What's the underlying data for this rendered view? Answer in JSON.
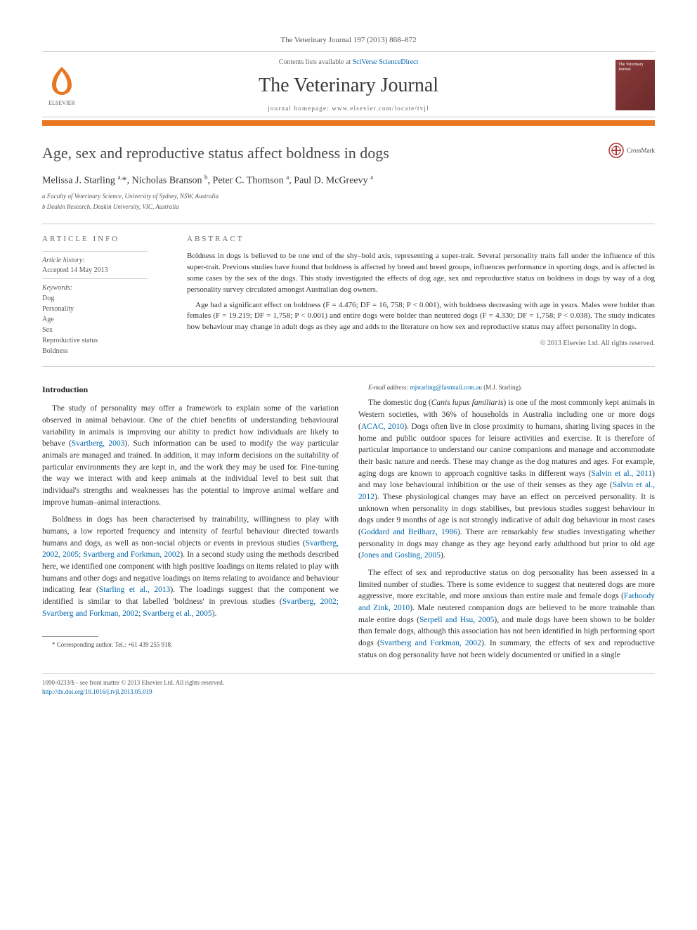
{
  "citation_line": "The Veterinary Journal 197 (2013) 868–872",
  "header": {
    "contents_prefix": "Contents lists available at ",
    "contents_link": "SciVerse ScienceDirect",
    "journal_name": "The Veterinary Journal",
    "homepage_prefix": "journal homepage: ",
    "homepage_url": "www.elsevier.com/locate/tvjl",
    "publisher_name": "ELSEVIER",
    "cover_text": "The Veterinary Journal"
  },
  "colors": {
    "orange": "#e87722",
    "link": "#0066aa",
    "rule": "#cccccc"
  },
  "article": {
    "title": "Age, sex and reproductive status affect boldness in dogs",
    "crossmark_label": "CrossMark",
    "authors_html": "Melissa J. Starling <sup>a,</sup>*, Nicholas Branson <sup>b</sup>, Peter C. Thomson <sup>a</sup>, Paul D. McGreevy <sup>a</sup>",
    "affiliations": [
      "a Faculty of Veterinary Science, University of Sydney, NSW, Australia",
      "b Deakin Research, Deakin University, VIC, Australia"
    ]
  },
  "info": {
    "heading": "ARTICLE INFO",
    "history_label": "Article history:",
    "history_value": "Accepted 14 May 2013",
    "keywords_label": "Keywords:",
    "keywords": [
      "Dog",
      "Personality",
      "Age",
      "Sex",
      "Reproductive status",
      "Boldness"
    ]
  },
  "abstract": {
    "heading": "ABSTRACT",
    "p1": "Boldness in dogs is believed to be one end of the shy–bold axis, representing a super-trait. Several personality traits fall under the influence of this super-trait. Previous studies have found that boldness is affected by breed and breed groups, influences performance in sporting dogs, and is affected in some cases by the sex of the dogs. This study investigated the effects of dog age, sex and reproductive status on boldness in dogs by way of a dog personality survey circulated amongst Australian dog owners.",
    "p2": "Age had a significant effect on boldness (F = 4.476; DF = 16, 758; P < 0.001), with boldness decreasing with age in years. Males were bolder than females (F = 19.219; DF = 1,758; P < 0.001) and entire dogs were bolder than neutered dogs (F = 4.330; DF = 1,758; P < 0.038). The study indicates how behaviour may change in adult dogs as they age and adds to the literature on how sex and reproductive status may affect personality in dogs.",
    "copyright": "© 2013 Elsevier Ltd. All rights reserved."
  },
  "body": {
    "intro_heading": "Introduction",
    "p1a": "The study of personality may offer a framework to explain some of the variation observed in animal behaviour. One of the chief benefits of understanding behavioural variability in animals is improving our ability to predict how individuals are likely to behave (",
    "c1": "Svartberg, 2003",
    "p1b": "). Such information can be used to modify the way particular animals are managed and trained. In addition, it may inform decisions on the suitability of particular environments they are kept in, and the work they may be used for. Fine-tuning the way we interact with and keep animals at the individual level to best suit that individual's strengths and weaknesses has the potential to improve animal welfare and improve human–animal interactions.",
    "p2a": "Boldness in dogs has been characterised by trainability, willingness to play with humans, a low reported frequency and intensity of fearful behaviour directed towards humans and dogs, as well as non-social objects or events in previous studies (",
    "c2": "Svartberg, 2002, 2005; Svartberg and Forkman, 2002",
    "p2b": "). In a second study using the methods described here, we identified one component with high positive loadings on items related to play with humans and other dogs and negative loadings on items relating to avoidance and behaviour indicating fear (",
    "c3": "Starling et al., 2013",
    "p2c": "). The loadings suggest that the component we identified is similar to that labelled 'boldness' in previous studies (",
    "c4": "Svartberg, 2002; Svartberg and Forkman, 2002; Svartberg et al., 2005",
    "p2d": ").",
    "p3a": "The domestic dog (",
    "species": "Canis lupus familiaris",
    "p3b": ") is one of the most commonly kept animals in Western societies, with 36% of households in Australia including one or more dogs (",
    "c5": "ACAC, 2010",
    "p3c": "). Dogs often live in close proximity to humans, sharing living spaces in the home and public outdoor spaces for leisure activities and exercise. It is therefore of particular importance to understand our canine companions and manage and accommodate their basic nature and needs. These may change as the dog matures and ages. For example, aging dogs are known to approach cognitive tasks in different ways (",
    "c6": "Salvin et al., 2011",
    "p3d": ") and may lose behavioural inhibition or the use of their senses as they age (",
    "c7": "Salvin et al., 2012",
    "p3e": "). These physiological changes may have an effect on perceived personality. It is unknown when personality in dogs stabilises, but previous studies suggest behaviour in dogs under 9 months of age is not strongly indicative of adult dog behaviour in most cases (",
    "c8": "Goddard and Beilharz, 1986",
    "p3f": "). There are remarkably few studies investigating whether personality in dogs may change as they age beyond early adulthood but prior to old age (",
    "c9": "Jones and Gosling, 2005",
    "p3g": ").",
    "p4a": "The effect of sex and reproductive status on dog personality has been assessed in a limited number of studies. There is some evidence to suggest that neutered dogs are more aggressive, more excitable, and more anxious than entire male and female dogs (",
    "c10": "Farhoody and Zink, 2010",
    "p4b": "). Male neutered companion dogs are believed to be more trainable than male entire dogs (",
    "c11": "Serpell and Hsu, 2005",
    "p4c": "), and male dogs have been shown to be bolder than female dogs, although this association has not been identified in high performing sport dogs (",
    "c12": "Svartberg and Forkman, 2002",
    "p4d": "). In summary, the effects of sex and reproductive status on dog personality have not been widely documented or unified in a single"
  },
  "footnote": {
    "corr_label": "* Corresponding author. Tel.: +61 439 255 918.",
    "email_label": "E-mail address:",
    "email": "mjstarling@fastmail.com.au",
    "email_name": "(M.J. Starling)."
  },
  "footer": {
    "issn_line": "1090-0233/$ - see front matter © 2013 Elsevier Ltd. All rights reserved.",
    "doi_line": "http://dx.doi.org/10.1016/j.tvjl.2013.05.019"
  }
}
